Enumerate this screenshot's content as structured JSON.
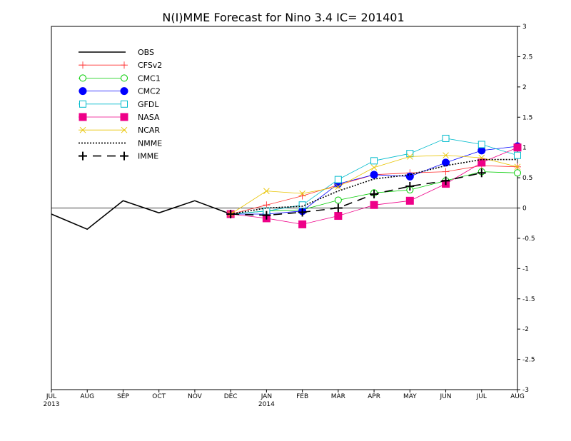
{
  "chart_data": {
    "type": "line",
    "title": "N(I)MME Forecast for Nino 3.4   IC= 201401",
    "xlabel": "",
    "ylabel": "",
    "categories": [
      "JUL",
      "AUG",
      "SEP",
      "OCT",
      "NOV",
      "DEC",
      "JAN",
      "FEB",
      "MAR",
      "APR",
      "MAY",
      "JUN",
      "JUL",
      "AUG"
    ],
    "year_labels": [
      {
        "index": 0,
        "label": "2013"
      },
      {
        "index": 6,
        "label": "2014"
      }
    ],
    "ylim": [
      -3,
      3
    ],
    "yticks": [
      {
        "value": 3,
        "label": "3"
      },
      {
        "value": 2.5,
        "label": "2.5"
      },
      {
        "value": 2,
        "label": "2"
      },
      {
        "value": 1.5,
        "label": "1.5"
      },
      {
        "value": 1,
        "label": "1"
      },
      {
        "value": 0.5,
        "label": "0.5"
      },
      {
        "value": 0,
        "label": "0"
      },
      {
        "value": -0.5,
        "label": "-0.5"
      },
      {
        "value": -1,
        "label": "-1"
      },
      {
        "value": -1.5,
        "label": "-1.5"
      },
      {
        "value": -2,
        "label": "-2"
      },
      {
        "value": -2.5,
        "label": "-2.5"
      },
      {
        "value": -3,
        "label": "-3"
      }
    ],
    "zero_line": true,
    "grid": false,
    "legend_position": "top-left",
    "series": [
      {
        "name": "OBS",
        "color": "#000000",
        "marker": "none",
        "dash": "solid",
        "width": 1.6,
        "values": [
          -0.1,
          -0.35,
          0.12,
          -0.08,
          0.12,
          -0.1,
          null,
          null,
          null,
          null,
          null,
          null,
          null,
          null
        ]
      },
      {
        "name": "CFSv2",
        "color": "#ff3333",
        "marker": "plus",
        "dash": "solid",
        "width": 0.8,
        "values": [
          null,
          null,
          null,
          null,
          null,
          -0.1,
          0.05,
          0.2,
          0.38,
          0.55,
          0.58,
          0.6,
          0.7,
          0.68
        ]
      },
      {
        "name": "CMC1",
        "color": "#00cc00",
        "marker": "circle-open",
        "dash": "solid",
        "width": 0.8,
        "values": [
          null,
          null,
          null,
          null,
          null,
          -0.1,
          -0.05,
          -0.03,
          0.13,
          0.25,
          0.3,
          0.45,
          0.6,
          0.58
        ]
      },
      {
        "name": "CMC2",
        "color": "#0000ff",
        "marker": "circle-filled",
        "dash": "solid",
        "width": 0.8,
        "values": [
          null,
          null,
          null,
          null,
          null,
          -0.1,
          -0.1,
          -0.05,
          0.4,
          0.55,
          0.52,
          0.75,
          0.95,
          1.02
        ]
      },
      {
        "name": "GFDL",
        "color": "#00bbcc",
        "marker": "square-open",
        "dash": "solid",
        "width": 0.8,
        "values": [
          null,
          null,
          null,
          null,
          null,
          -0.1,
          -0.05,
          0.05,
          0.47,
          0.78,
          0.9,
          1.15,
          1.05,
          0.87
        ]
      },
      {
        "name": "NASA",
        "color": "#ee0088",
        "marker": "square-filled",
        "dash": "solid",
        "width": 0.8,
        "values": [
          null,
          null,
          null,
          null,
          null,
          -0.1,
          -0.17,
          -0.27,
          -0.13,
          0.05,
          0.12,
          0.4,
          0.75,
          1.0
        ]
      },
      {
        "name": "NCAR",
        "color": "#e8c400",
        "marker": "x",
        "dash": "solid",
        "width": 0.8,
        "values": [
          null,
          null,
          null,
          null,
          null,
          -0.1,
          0.28,
          0.24,
          0.35,
          0.67,
          0.85,
          0.87,
          0.83,
          0.68
        ]
      },
      {
        "name": "NMME",
        "color": "#000000",
        "marker": "none",
        "dash": "dotted",
        "width": 1.6,
        "values": [
          null,
          null,
          null,
          null,
          null,
          -0.1,
          0.0,
          0.03,
          0.28,
          0.48,
          0.55,
          0.7,
          0.8,
          0.8
        ]
      },
      {
        "name": "IMME",
        "color": "#000000",
        "marker": "plus-bold",
        "dash": "dashed",
        "width": 1.6,
        "values": [
          null,
          null,
          null,
          null,
          null,
          -0.1,
          -0.12,
          -0.07,
          0.0,
          0.23,
          0.36,
          0.45,
          0.58,
          null
        ]
      }
    ]
  }
}
